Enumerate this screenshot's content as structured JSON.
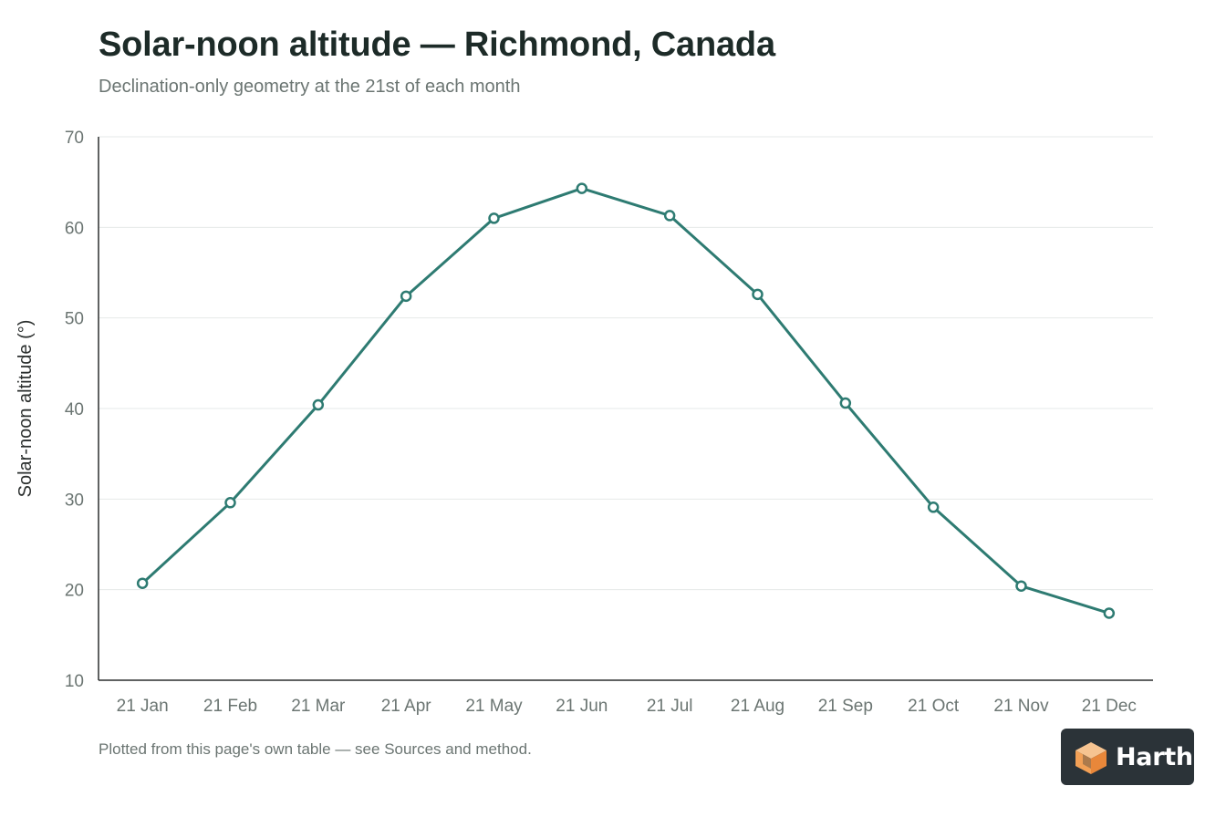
{
  "header": {
    "title": "Solar-noon altitude — Richmond, Canada",
    "subtitle": "Declination-only geometry at the 21st of each month"
  },
  "footer": {
    "note": "Plotted from this page's own table — see Sources and method."
  },
  "brand": {
    "name": "Harth",
    "logo_icon": "cube-icon"
  },
  "colors": {
    "line": "#2e7b72",
    "marker_fill": "#ffffff",
    "axis": "#2b2f2e",
    "grid": "#e6e9e8",
    "tick_text": "#6b7572"
  },
  "chart_data": {
    "type": "line",
    "title": "Solar-noon altitude — Richmond, Canada",
    "subtitle": "Declination-only geometry at the 21st of each month",
    "xlabel": "",
    "ylabel": "Solar-noon altitude (°)",
    "categories": [
      "21 Jan",
      "21 Feb",
      "21 Mar",
      "21 Apr",
      "21 May",
      "21 Jun",
      "21 Jul",
      "21 Aug",
      "21 Sep",
      "21 Oct",
      "21 Nov",
      "21 Dec"
    ],
    "series": [
      {
        "values": [
          20.7,
          29.6,
          40.4,
          52.4,
          61.0,
          64.3,
          61.3,
          52.6,
          40.6,
          29.1,
          20.4,
          17.4
        ]
      }
    ],
    "ylim": [
      10,
      70
    ],
    "yticks": [
      10,
      20,
      30,
      40,
      50,
      60,
      70
    ],
    "grid": true,
    "legend": "none"
  }
}
